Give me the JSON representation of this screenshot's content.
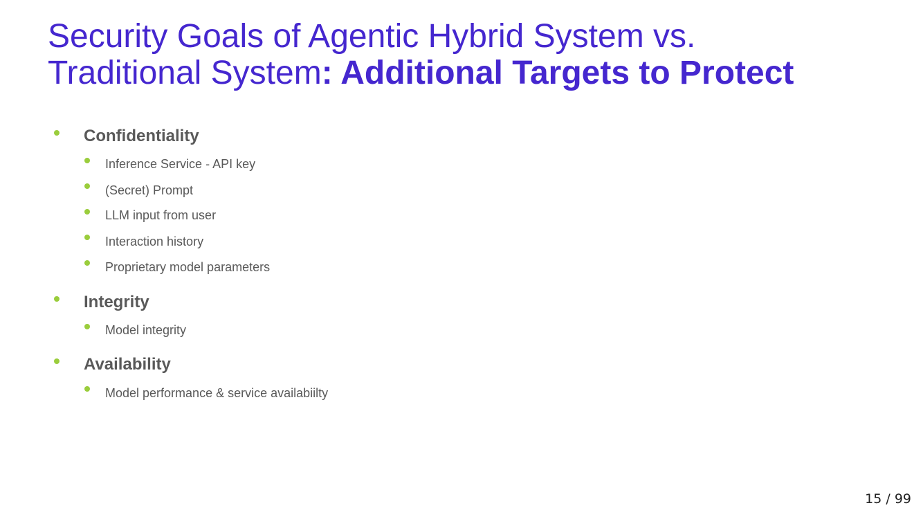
{
  "title": {
    "line1": "Security Goals of Agentic Hybrid System vs.",
    "line2_regular": "Traditional System",
    "line2_bold": ": Additional Targets to Protect"
  },
  "sections": [
    {
      "heading": "Confidentiality",
      "items": [
        "Inference Service - API key",
        "(Secret) Prompt",
        "LLM input from user",
        "Interaction history",
        "Proprietary model parameters"
      ]
    },
    {
      "heading": "Integrity",
      "items": [
        "Model integrity"
      ]
    },
    {
      "heading": "Availability",
      "items": [
        "Model performance & service availabiilty"
      ]
    }
  ],
  "page": {
    "current": "15",
    "separator": "/",
    "total": "99"
  },
  "colors": {
    "title": "#4527cf",
    "bullet": "#9acd3c",
    "body_text": "#595959"
  }
}
